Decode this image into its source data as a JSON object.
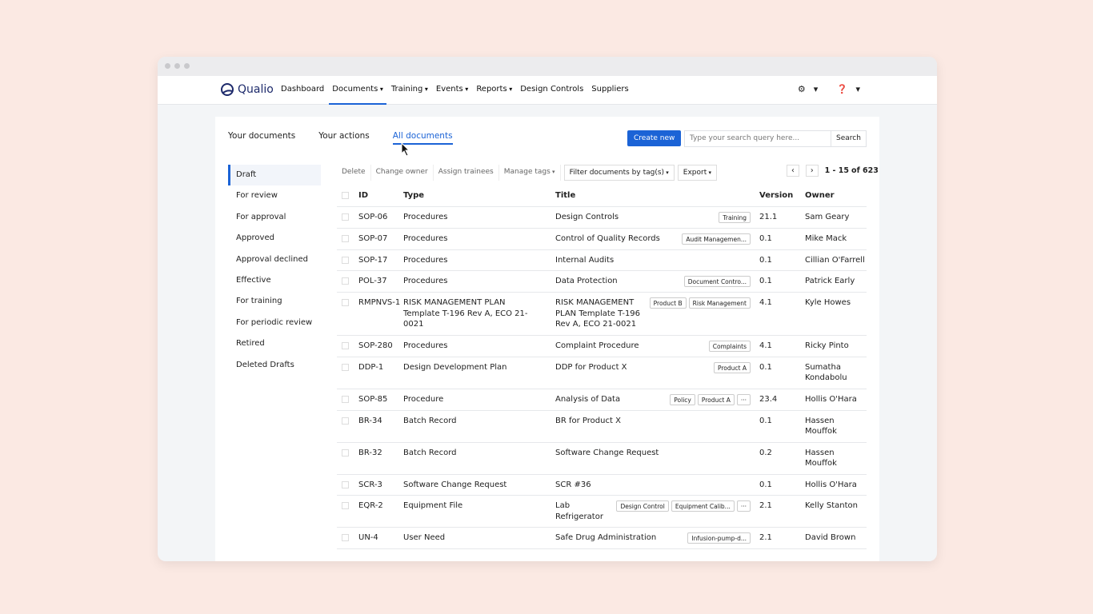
{
  "nav": {
    "brand": "Qualio",
    "items": [
      "Dashboard",
      "Documents",
      "Training",
      "Events",
      "Reports",
      "Design Controls",
      "Suppliers"
    ],
    "active": 1,
    "dropdowns": [
      1,
      2,
      3,
      4
    ]
  },
  "tabs": {
    "items": [
      "Your documents",
      "Your actions",
      "All documents"
    ],
    "active": 2
  },
  "actions": {
    "create": "Create new",
    "search_placeholder": "Type your search query here...",
    "search": "Search"
  },
  "sidebar": {
    "items": [
      "Draft",
      "For review",
      "For approval",
      "Approved",
      "Approval declined",
      "Effective",
      "For training",
      "For periodic review",
      "Retired",
      "Deleted Drafts"
    ],
    "active": 0
  },
  "toolbar": {
    "items": [
      "Delete",
      "Change owner",
      "Assign trainees",
      "Manage tags",
      "Filter documents by tag(s)",
      "Export"
    ]
  },
  "pagination": {
    "range": "1 - 15",
    "total": "of 623"
  },
  "table": {
    "columns": [
      "ID",
      "Type",
      "Title",
      "Version",
      "Owner"
    ],
    "rows": [
      {
        "id": "SOP-06",
        "type": "Procedures",
        "title": "Design Controls",
        "tags": [
          "Training"
        ],
        "version": "21.1",
        "owner": "Sam Geary"
      },
      {
        "id": "SOP-07",
        "type": "Procedures",
        "title": "Control of Quality Records",
        "tags": [
          "Audit Managemen..."
        ],
        "version": "0.1",
        "owner": "Mike Mack"
      },
      {
        "id": "SOP-17",
        "type": "Procedures",
        "title": "Internal Audits",
        "tags": [],
        "version": "0.1",
        "owner": "Cillian O'Farrell"
      },
      {
        "id": "POL-37",
        "type": "Procedures",
        "title": "Data Protection",
        "tags": [
          "Document Contro..."
        ],
        "version": "0.1",
        "owner": "Patrick Early"
      },
      {
        "id": "RMPNVS-1",
        "type": "RISK MANAGEMENT PLAN Template T-196 Rev A, ECO 21- 0021",
        "title": "RISK MANAGEMENT PLAN Template T-196 Rev A, ECO 21-0021",
        "tags": [
          "Product B",
          "Risk Management"
        ],
        "version": "4.1",
        "owner": "Kyle Howes"
      },
      {
        "id": "SOP-280",
        "type": "Procedures",
        "title": "Complaint Procedure",
        "tags": [
          "Complaints"
        ],
        "version": "4.1",
        "owner": "Ricky Pinto"
      },
      {
        "id": "DDP-1",
        "type": "Design Development Plan",
        "title": "DDP for Product X",
        "tags": [
          "Product A"
        ],
        "version": "0.1",
        "owner": "Sumatha Kondabolu"
      },
      {
        "id": "SOP-85",
        "type": "Procedure",
        "title": "Analysis of Data",
        "tags": [
          "Policy",
          "Product A",
          "···"
        ],
        "version": "23.4",
        "owner": "Hollis O'Hara"
      },
      {
        "id": "BR-34",
        "type": "Batch Record",
        "title": "BR for Product X",
        "tags": [],
        "version": "0.1",
        "owner": "Hassen Mouffok"
      },
      {
        "id": "BR-32",
        "type": "Batch Record",
        "title": "Software Change Request",
        "tags": [],
        "version": "0.2",
        "owner": "Hassen Mouffok"
      },
      {
        "id": "SCR-3",
        "type": "Software Change Request",
        "title": "SCR #36",
        "tags": [],
        "version": "0.1",
        "owner": "Hollis O'Hara"
      },
      {
        "id": "EQR-2",
        "type": "Equipment File",
        "title": "Lab Refrigerator",
        "tags": [
          "Design Control",
          "Equipment Calib...",
          "···"
        ],
        "version": "2.1",
        "owner": "Kelly Stanton"
      },
      {
        "id": "UN-4",
        "type": "User Need",
        "title": "Safe Drug Administration",
        "tags": [
          "Infusion-pump-d..."
        ],
        "version": "2.1",
        "owner": "David Brown"
      }
    ]
  }
}
